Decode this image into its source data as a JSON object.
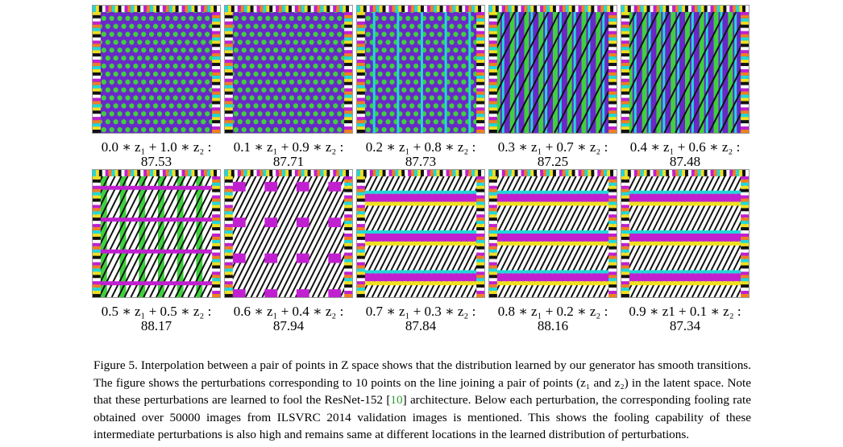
{
  "rows": [
    [
      {
        "label": "0.0 ∗ z₁ + 1.0 ∗ z₂ :",
        "rate": "87.53",
        "style": "dots"
      },
      {
        "label": "0.1 ∗ z₁ + 0.9 ∗ z₂ :",
        "rate": "87.71",
        "style": "dots"
      },
      {
        "label": "0.2 ∗ z₁ + 0.8 ∗ z₂ :",
        "rate": "87.73",
        "style": "dots-stripes"
      },
      {
        "label": "0.3 ∗ z₁ + 0.7 ∗ z₂ :",
        "rate": "87.25",
        "style": "stripes"
      },
      {
        "label": "0.4 ∗ z₁ + 0.6 ∗ z₂ :",
        "rate": "87.48",
        "style": "stripes"
      }
    ],
    [
      {
        "label": "0.5 ∗ z₁ + 0.5 ∗ z₂ :",
        "rate": "88.17",
        "style": "stripes-hatch"
      },
      {
        "label": "0.6 ∗ z₁ + 0.4 ∗ z₂ :",
        "rate": "87.94",
        "style": "hatch-blocks"
      },
      {
        "label": "0.7 ∗ z₁ + 0.3 ∗ z₂ :",
        "rate": "87.84",
        "style": "hatch-bands"
      },
      {
        "label": "0.8 ∗ z₁ + 0.2 ∗ z₂ :",
        "rate": "88.16",
        "style": "hatch-bands"
      },
      {
        "label": "0.9 ∗ z1 + 0.1 ∗ z₂ :",
        "rate": "87.34",
        "style": "hatch-bands"
      }
    ]
  ],
  "caption": {
    "before_ref": "Figure 5. Interpolation between a pair of points in Z space shows that the distribution learned by our generator has smooth transitions. The figure shows the perturbations corresponding to 10 points on the line joining a pair of points (z₁ and z₂) in the latent space. Note that these perturbations are learned to fool the ResNet-152 [",
    "ref": "10",
    "after_ref": "] architecture. Below each perturbation, the corresponding fooling rate obtained over 50000 images from ILSVRC 2014 validation images is mentioned. This shows the fooling capability of these intermediate perturbations is also high and remains same at different locations in the learned distribution of perturbations."
  },
  "colors": {
    "green": "#3fcf3f",
    "magenta": "#c020d0",
    "purple": "#6a28c8",
    "cyan": "#20d8d8",
    "orange": "#f08020",
    "yellow": "#f0e020",
    "black": "#111111",
    "white": "#ffffff"
  }
}
